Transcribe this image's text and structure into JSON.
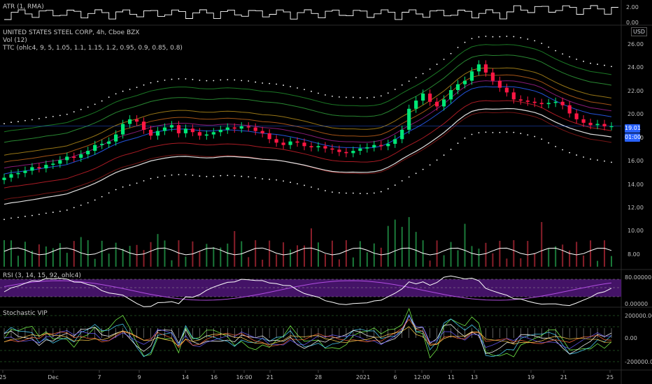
{
  "atr_panel": {
    "label": "ATR (1, RMA)",
    "ticks": [
      "2.00",
      "0.00"
    ]
  },
  "main_panel": {
    "title": "UNITED STATES STEEL CORP, 4h, Cboe BZX",
    "indicators": [
      "Vol (12)",
      "TTC (ohlc4, 9, 5, 1.05, 1.1, 1.15, 1.2, 0.95, 0.9, 0.85, 0.8)"
    ],
    "currency": "USD",
    "ticks": [
      "26.00",
      "24.00",
      "22.00",
      "20.00",
      "18.00",
      "16.00",
      "14.00",
      "12.00",
      "10.00",
      "8.00"
    ],
    "price_badge": "19.01",
    "time_badge": "01:00"
  },
  "rsi_panel": {
    "label": "RSI (3, 14, 15, 92, ohlc4)",
    "ticks": [
      "80.00000",
      "0.00000"
    ]
  },
  "vip_panel": {
    "label": "Stochastic VIP",
    "ticks": [
      "200000.00",
      "0.00",
      "-200000.00"
    ]
  },
  "x_axis": [
    {
      "label": "25",
      "x": 4
    },
    {
      "label": "Dec",
      "x": 76
    },
    {
      "label": "7",
      "x": 142
    },
    {
      "label": "9",
      "x": 199
    },
    {
      "label": "14",
      "x": 265
    },
    {
      "label": "16",
      "x": 306
    },
    {
      "label": "16:00",
      "x": 349
    },
    {
      "label": "21",
      "x": 386
    },
    {
      "label": "28",
      "x": 455
    },
    {
      "label": "2021",
      "x": 519
    },
    {
      "label": "6",
      "x": 565
    },
    {
      "label": "12:00",
      "x": 603
    },
    {
      "label": "11",
      "x": 645
    },
    {
      "label": "13",
      "x": 678
    },
    {
      "label": "19",
      "x": 759
    },
    {
      "label": "21",
      "x": 806
    },
    {
      "label": "25",
      "x": 872
    }
  ],
  "chart_data": {
    "type": "candlestick",
    "ylim": [
      6.8,
      27.6
    ],
    "close": [
      14.6,
      14.9,
      15.0,
      15.2,
      15.5,
      15.4,
      15.7,
      15.8,
      16.1,
      16.4,
      16.3,
      16.6,
      16.9,
      17.4,
      17.5,
      17.7,
      18.3,
      19.2,
      19.6,
      19.4,
      18.7,
      18.2,
      18.6,
      18.9,
      19.1,
      18.4,
      18.8,
      18.5,
      18.2,
      18.3,
      18.5,
      18.7,
      18.9,
      18.8,
      19.0,
      18.9,
      18.6,
      18.4,
      17.9,
      17.6,
      17.4,
      17.7,
      17.6,
      17.3,
      17.2,
      17.3,
      17.1,
      17.0,
      16.8,
      16.7,
      16.9,
      17.1,
      17.2,
      17.4,
      17.3,
      17.5,
      17.9,
      18.7,
      20.5,
      21.2,
      21.8,
      21.1,
      20.7,
      21.3,
      22.1,
      22.6,
      22.9,
      23.7,
      24.3,
      23.6,
      22.9,
      22.3,
      21.9,
      21.3,
      21.2,
      21.1,
      21.0,
      20.9,
      21.0,
      21.1,
      20.8,
      20.1,
      19.6,
      19.3,
      19.1,
      19.2,
      19.0,
      19.0
    ],
    "mid_band_start": 14.6,
    "upper_dots_peak": 27.2,
    "series": [
      {
        "name": "ATR (1, RMA)"
      },
      {
        "name": "Vol (12)"
      },
      {
        "name": "RSI"
      },
      {
        "name": "Stochastic VIP"
      }
    ]
  },
  "colors": {
    "up": "#00e676",
    "down": "#ff1744",
    "rsi_bg": "#5b1a8a",
    "badge": "#2962ff"
  }
}
